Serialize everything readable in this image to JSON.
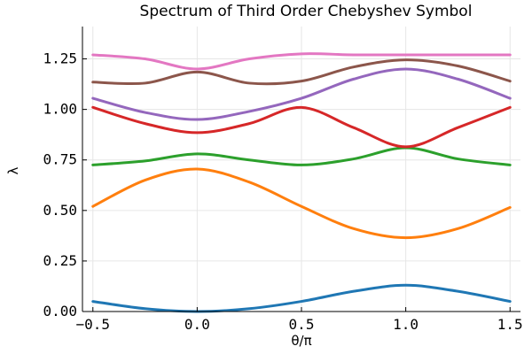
{
  "chart_data": {
    "type": "line",
    "title": "Spectrum of Third Order Chebyshev Symbol",
    "xlabel": "θ/π",
    "ylabel": "λ",
    "xlim": [
      -0.55,
      1.55
    ],
    "ylim": [
      0,
      1.41
    ],
    "xticks": [
      -0.5,
      0.0,
      0.5,
      1.0,
      1.5
    ],
    "xtick_labels": [
      "−0.5",
      "0.0",
      "0.5",
      "1.0",
      "1.5"
    ],
    "yticks": [
      0,
      0.25,
      0.5,
      0.75,
      1.0,
      1.25
    ],
    "ytick_labels": [
      "0.00",
      "0.25",
      "0.50",
      "0.75",
      "1.00",
      "1.25"
    ],
    "grid": true,
    "legend": false,
    "x": [
      -0.5,
      -0.25,
      0.0,
      0.25,
      0.5,
      0.75,
      1.0,
      1.25,
      1.5
    ],
    "series": [
      {
        "color": "#1f77b4",
        "values": [
          0.05,
          0.014,
          0.0,
          0.014,
          0.05,
          0.1,
          0.13,
          0.1,
          0.05
        ]
      },
      {
        "color": "#ff7f0e",
        "values": [
          0.52,
          0.65,
          0.705,
          0.64,
          0.52,
          0.41,
          0.365,
          0.41,
          0.515
        ]
      },
      {
        "color": "#2ca02c",
        "values": [
          0.725,
          0.745,
          0.78,
          0.75,
          0.725,
          0.755,
          0.81,
          0.755,
          0.725
        ]
      },
      {
        "color": "#d62728",
        "values": [
          1.01,
          0.93,
          0.885,
          0.93,
          1.01,
          0.91,
          0.815,
          0.91,
          1.01
        ]
      },
      {
        "color": "#9467bd",
        "values": [
          1.055,
          0.985,
          0.95,
          0.99,
          1.055,
          1.15,
          1.2,
          1.15,
          1.055
        ]
      },
      {
        "color": "#8c564b",
        "values": [
          1.135,
          1.13,
          1.185,
          1.13,
          1.14,
          1.21,
          1.245,
          1.215,
          1.14
        ]
      },
      {
        "color": "#e377c2",
        "values": [
          1.27,
          1.25,
          1.2,
          1.25,
          1.275,
          1.27,
          1.27,
          1.27,
          1.27
        ]
      }
    ]
  }
}
